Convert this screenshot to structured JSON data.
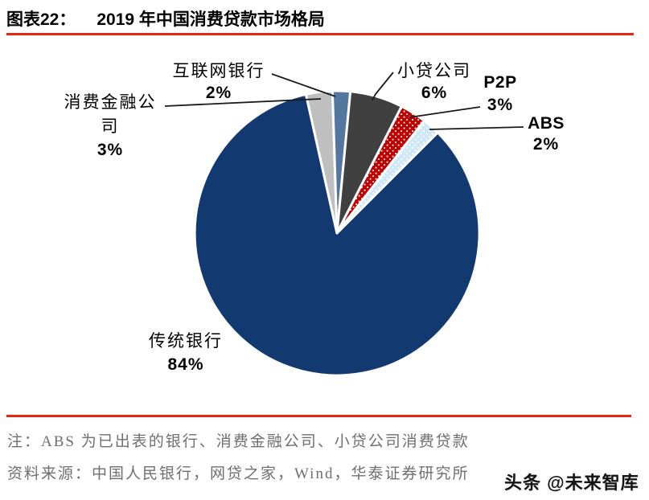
{
  "header": {
    "figure_label": "图表22：",
    "title": "2019 年中国消费贷款市场格局"
  },
  "chart_data": {
    "type": "pie",
    "title": "2019 年中国消费贷款市场格局",
    "unit": "percent of market",
    "start_angle_deg": 45,
    "direction": "clockwise",
    "legend": "none",
    "data_labels": "outside-with-leader-lines",
    "slices": [
      {
        "label": "传统银行",
        "value": 84,
        "pct_label": "84%",
        "color": "#133A70",
        "pattern": "solid"
      },
      {
        "label": "消费金融公司",
        "value": 3,
        "pct_label": "3%",
        "color": "#BFBFBF",
        "pattern": "solid"
      },
      {
        "label": "互联网银行",
        "value": 2,
        "pct_label": "2%",
        "color": "#54779F",
        "pattern": "solid"
      },
      {
        "label": "小贷公司",
        "value": 6,
        "pct_label": "6%",
        "color": "#404040",
        "pattern": "solid"
      },
      {
        "label": "P2P",
        "value": 3,
        "pct_label": "3%",
        "color": "#C00000",
        "pattern": "white-dots"
      },
      {
        "label": "ABS",
        "value": 2,
        "pct_label": "2%",
        "color": "#CFE8F7",
        "pattern": "white-dots"
      }
    ]
  },
  "footer": {
    "note": "注：ABS 为已出表的银行、消费金融公司、小贷公司消费贷款",
    "source": "资料来源：中国人民银行，网贷之家，Wind，华泰证券研究所",
    "watermark": "头条 @未来智库"
  },
  "colors": {
    "rule_red": "#E8250E",
    "leader_line": "#1A1A1A",
    "note_gray": "#6F6F6F",
    "title_black": "#000000"
  }
}
